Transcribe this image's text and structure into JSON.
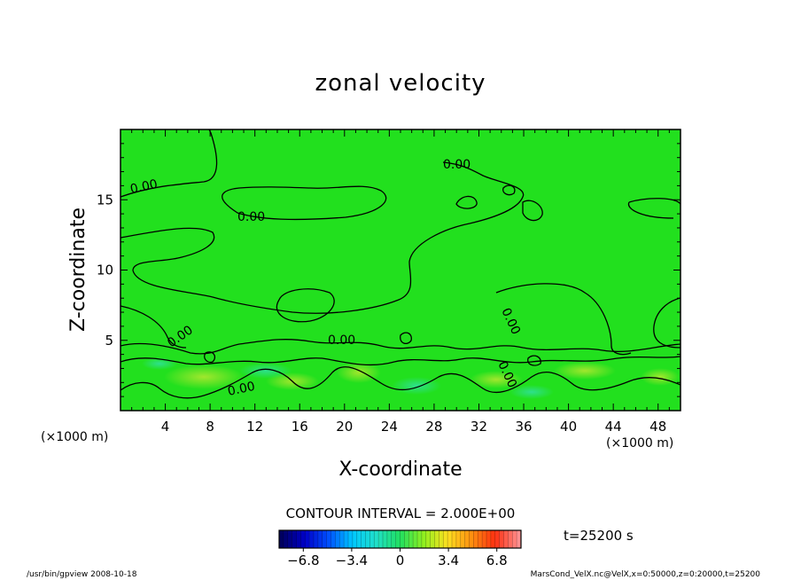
{
  "chart_data": {
    "type": "heatmap",
    "title": "zonal velocity",
    "xlabel": "X-coordinate",
    "ylabel": "Z-coordinate",
    "x_unit": "(×1000 m)",
    "y_unit": "(×1000 m)",
    "xlim": [
      0,
      50
    ],
    "ylim": [
      0,
      20
    ],
    "x_ticks": [
      4,
      8,
      12,
      16,
      20,
      24,
      28,
      32,
      36,
      40,
      44,
      48
    ],
    "y_ticks": [
      5,
      10,
      15
    ],
    "field_range": [
      -8.5,
      8.5
    ],
    "background_value_color": "#22e01e",
    "contour_levels": [
      0.0
    ],
    "contour_labels": [
      "0.00",
      "0.00",
      "0.00",
      "0.00",
      "0.00",
      "0.00",
      "0.00",
      "0.00"
    ],
    "contour_interval_text": "CONTOUR INTERVAL = 2.000E+00",
    "colorbar": {
      "ticks": [
        -6.8,
        -3.4,
        0,
        3.4,
        6.8
      ],
      "tick_labels": [
        "−6.8",
        "−3.4",
        "0",
        "3.4",
        "6.8"
      ],
      "colors": [
        "#000060",
        "#0000c8",
        "#0050ff",
        "#00c8ff",
        "#20e0c8",
        "#20e060",
        "#90f020",
        "#ffe020",
        "#ff9010",
        "#ff3010",
        "#ff9090"
      ]
    },
    "time_label": "t=25200 s",
    "footer_left": "/usr/bin/gpview   2008-10-18",
    "footer_right": "MarsCond_VelX.nc@VelX,x=0:50000,z=0:20000,t=25200"
  }
}
